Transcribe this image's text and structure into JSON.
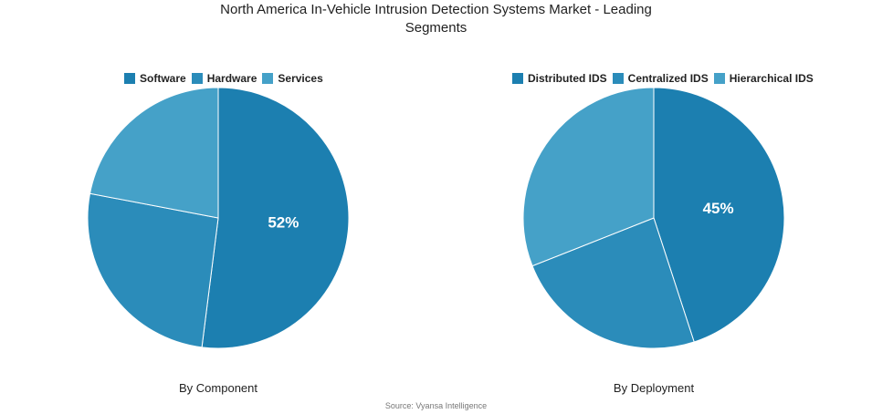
{
  "title_line1": "North America In-Vehicle Intrusion Detection Systems Market - Leading",
  "title_line2": "Segments",
  "source": "Source: Vyansa Intelligence",
  "chart_data": [
    {
      "type": "pie",
      "subtitle": "By Component",
      "categories": [
        "Software",
        "Hardware",
        "Services"
      ],
      "values": [
        52,
        26,
        22
      ],
      "colors": [
        "#1c7fb0",
        "#2b8cba",
        "#45a1c8"
      ],
      "data_labels": [
        "52%",
        "",
        ""
      ],
      "legend_position": "top"
    },
    {
      "type": "pie",
      "subtitle": "By Deployment",
      "categories": [
        "Distributed IDS",
        "Centralized IDS",
        "Hierarchical IDS"
      ],
      "values": [
        45,
        24,
        31
      ],
      "colors": [
        "#1c7fb0",
        "#2b8cba",
        "#45a1c8"
      ],
      "data_labels": [
        "45%",
        "",
        ""
      ],
      "legend_position": "top"
    }
  ]
}
